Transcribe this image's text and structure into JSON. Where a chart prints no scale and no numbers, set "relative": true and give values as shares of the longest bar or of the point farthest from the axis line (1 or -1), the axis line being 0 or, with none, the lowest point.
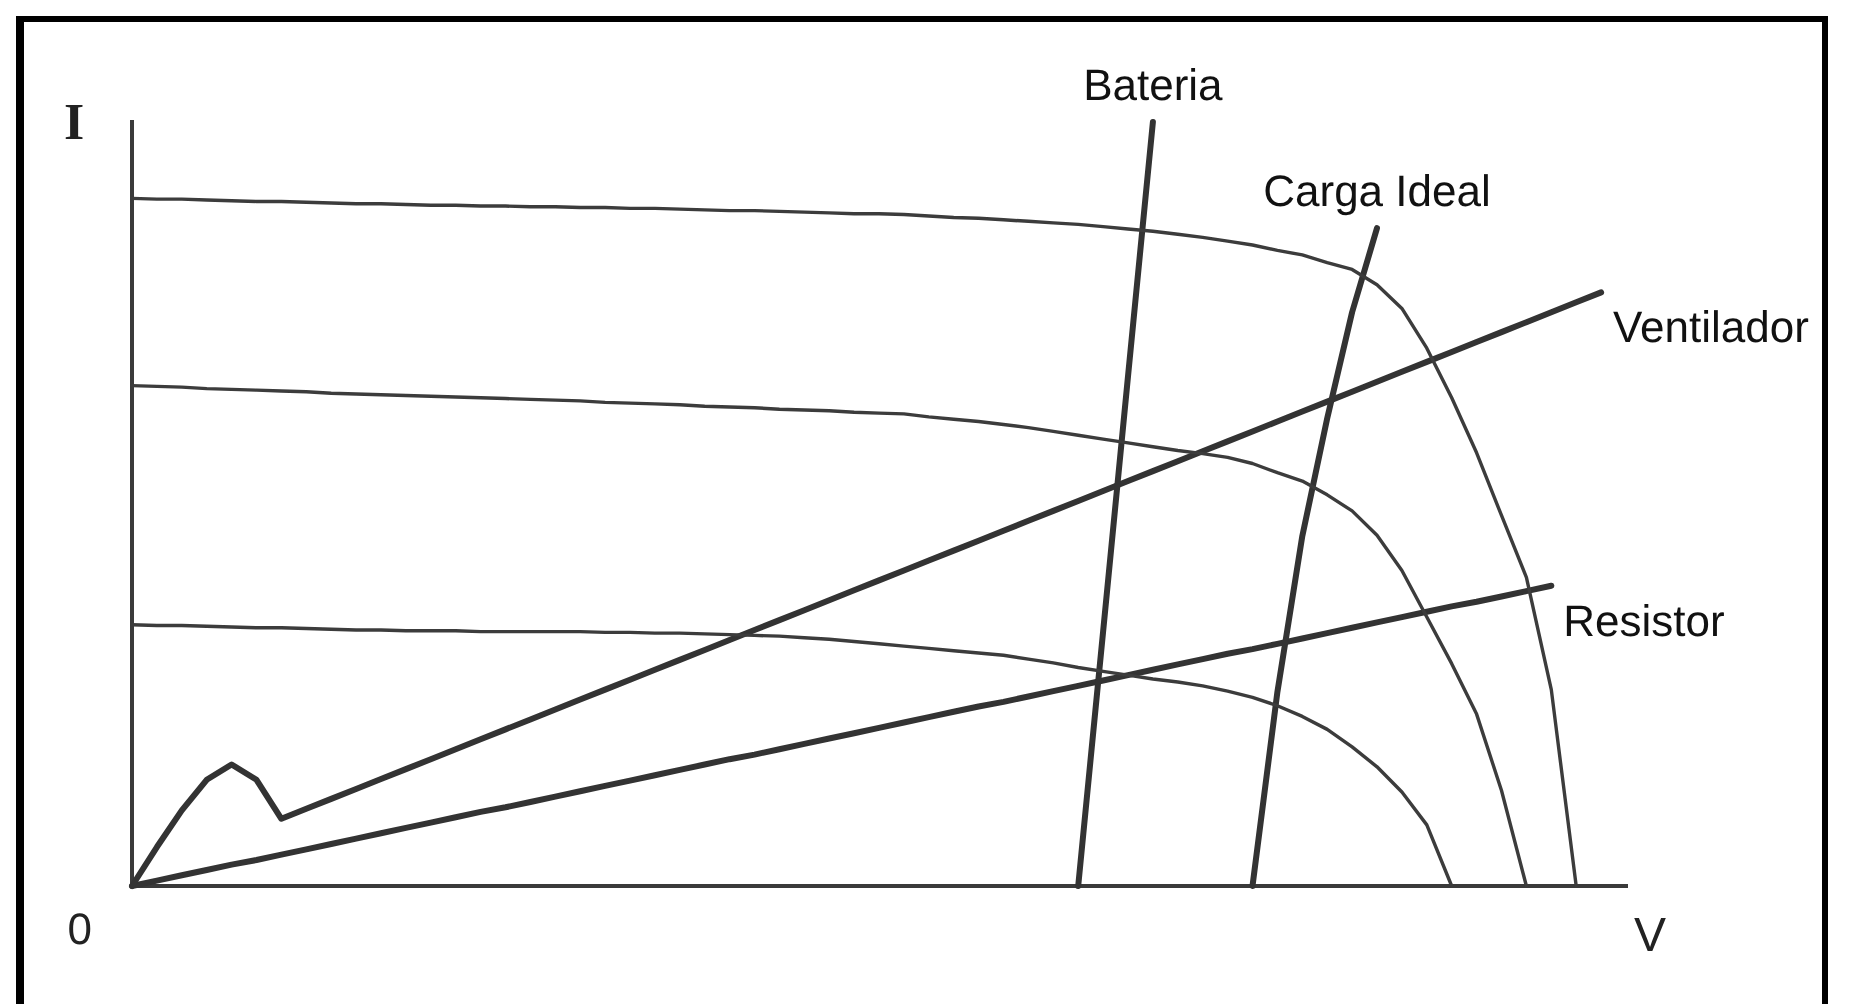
{
  "chart_data": {
    "type": "line",
    "xlabel": "V",
    "ylabel": "I",
    "relative": true,
    "legend": false,
    "grid": false,
    "marker": "none",
    "annotations": [
      "0"
    ],
    "categories": [
      null,
      null,
      null,
      null,
      null,
      null,
      null,
      null,
      null,
      null,
      null,
      null,
      null,
      null,
      null,
      null,
      null,
      null,
      null,
      null,
      null,
      null,
      null,
      null,
      null,
      null,
      null,
      null,
      null,
      null,
      null,
      null,
      null,
      null,
      null,
      null,
      null,
      null,
      null,
      null,
      null,
      null,
      null,
      null,
      null,
      null,
      null,
      null,
      null,
      null,
      null,
      null,
      null,
      null,
      null,
      null,
      null,
      null,
      null,
      null,
      null
    ],
    "series": [
      {
        "color": "#3c3c3c",
        "values": [
          0.9,
          0.899,
          0.899,
          0.898,
          0.897,
          0.896,
          0.896,
          0.895,
          0.894,
          0.893,
          0.893,
          0.892,
          0.891,
          0.891,
          0.89,
          0.89,
          0.889,
          0.889,
          0.888,
          0.888,
          0.887,
          0.887,
          0.886,
          0.885,
          0.884,
          0.884,
          0.883,
          0.882,
          0.881,
          0.88,
          0.88,
          0.879,
          0.877,
          0.875,
          0.874,
          0.872,
          0.87,
          0.868,
          0.866,
          0.863,
          0.86,
          0.857,
          0.853,
          0.849,
          0.844,
          0.839,
          0.832,
          0.826,
          0.816,
          0.807,
          0.787,
          0.756,
          0.704,
          0.639,
          0.567,
          0.485,
          0.404,
          0.257,
          0,
          null,
          null
        ]
      },
      {
        "color": "#3c3c3c",
        "values": [
          0.655,
          0.654,
          0.653,
          0.651,
          0.65,
          0.649,
          0.648,
          0.647,
          0.645,
          0.644,
          0.643,
          0.642,
          0.641,
          0.64,
          0.639,
          0.638,
          0.637,
          0.636,
          0.635,
          0.633,
          0.632,
          0.631,
          0.63,
          0.628,
          0.627,
          0.626,
          0.624,
          0.623,
          0.622,
          0.62,
          0.619,
          0.618,
          0.614,
          0.611,
          0.608,
          0.604,
          0.6,
          0.595,
          0.59,
          0.585,
          0.58,
          0.575,
          0.57,
          0.566,
          0.561,
          0.553,
          0.541,
          0.53,
          0.512,
          0.491,
          0.459,
          0.413,
          0.352,
          0.291,
          0.225,
          0.125,
          0,
          null,
          null,
          null,
          null
        ]
      },
      {
        "color": "#3c3c3c",
        "values": [
          0.342,
          0.341,
          0.341,
          0.34,
          0.339,
          0.338,
          0.338,
          0.337,
          0.336,
          0.335,
          0.335,
          0.334,
          0.334,
          0.334,
          0.333,
          0.333,
          0.333,
          0.333,
          0.333,
          0.332,
          0.332,
          0.331,
          0.331,
          0.33,
          0.329,
          0.328,
          0.327,
          0.325,
          0.323,
          0.32,
          0.317,
          0.314,
          0.311,
          0.308,
          0.305,
          0.302,
          0.297,
          0.292,
          0.286,
          0.281,
          0.276,
          0.271,
          0.267,
          0.262,
          0.255,
          0.247,
          0.236,
          0.222,
          0.205,
          0.182,
          0.156,
          0.123,
          0.08,
          0,
          null,
          null,
          null,
          null,
          null,
          null,
          null
        ]
      },
      {
        "name": "Bateria",
        "color": "#333333",
        "values": [
          null,
          null,
          null,
          null,
          null,
          null,
          null,
          null,
          null,
          null,
          null,
          null,
          null,
          null,
          null,
          null,
          null,
          null,
          null,
          null,
          null,
          null,
          null,
          null,
          null,
          null,
          null,
          null,
          null,
          null,
          null,
          null,
          null,
          null,
          null,
          null,
          null,
          null,
          0,
          0.333,
          0.667,
          1,
          null,
          null,
          null,
          null,
          null,
          null,
          null,
          null,
          null,
          null,
          null,
          null,
          null,
          null,
          null,
          null,
          null,
          null,
          null
        ]
      },
      {
        "name": "Carga Ideal",
        "color": "#333333",
        "values": [
          null,
          null,
          null,
          null,
          null,
          null,
          null,
          null,
          null,
          null,
          null,
          null,
          null,
          null,
          null,
          null,
          null,
          null,
          null,
          null,
          null,
          null,
          null,
          null,
          null,
          null,
          null,
          null,
          null,
          null,
          null,
          null,
          null,
          null,
          null,
          null,
          null,
          null,
          null,
          null,
          null,
          null,
          null,
          null,
          null,
          0,
          0.254,
          0.458,
          0.612,
          0.751,
          0.861,
          null,
          null,
          null,
          null,
          null,
          null,
          null,
          null,
          null,
          null
        ]
      },
      {
        "name": "Ventilador",
        "color": "#333333",
        "values": [
          0,
          0.051,
          0.099,
          0.139,
          0.159,
          0.139,
          0.088,
          0.101,
          0.114,
          0.127,
          0.14,
          0.153,
          0.166,
          0.179,
          0.192,
          0.205,
          0.218,
          0.231,
          0.244,
          0.257,
          0.27,
          0.283,
          0.296,
          0.309,
          0.322,
          0.335,
          0.348,
          0.361,
          0.374,
          0.387,
          0.4,
          0.413,
          0.426,
          0.439,
          0.452,
          0.465,
          0.478,
          0.491,
          0.504,
          0.517,
          0.53,
          0.543,
          0.556,
          0.569,
          0.582,
          0.595,
          0.608,
          0.621,
          0.634,
          0.647,
          0.66,
          0.673,
          0.686,
          0.699,
          0.712,
          0.725,
          0.738,
          0.751,
          0.764,
          0.777,
          null
        ]
      },
      {
        "name": "Resistor",
        "color": "#333333",
        "values": [
          0,
          0.007,
          0.014,
          0.021,
          0.028,
          0.034,
          0.041,
          0.048,
          0.055,
          0.062,
          0.069,
          0.076,
          0.083,
          0.09,
          0.097,
          0.103,
          0.11,
          0.117,
          0.124,
          0.131,
          0.138,
          0.145,
          0.152,
          0.159,
          0.166,
          0.172,
          0.179,
          0.186,
          0.193,
          0.2,
          0.207,
          0.214,
          0.221,
          0.228,
          0.235,
          0.241,
          0.248,
          0.255,
          0.262,
          0.269,
          0.276,
          0.283,
          0.29,
          0.297,
          0.304,
          0.31,
          0.317,
          0.324,
          0.331,
          0.338,
          0.345,
          0.352,
          0.359,
          0.366,
          0.372,
          0.379,
          0.386,
          0.393,
          null,
          null,
          null
        ]
      }
    ]
  }
}
